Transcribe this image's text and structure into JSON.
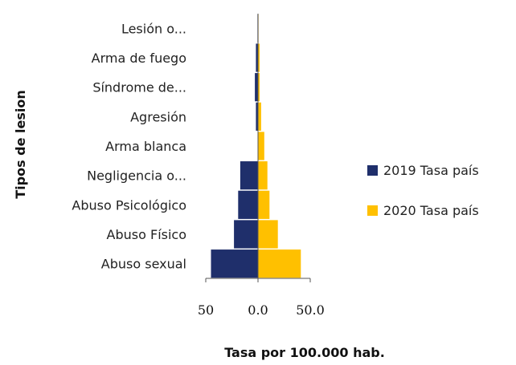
{
  "chart_data": {
    "type": "bar",
    "orientation": "horizontal",
    "layout": "population-pyramid",
    "categories": [
      "Lesión o...",
      "Arma de fuego",
      "Síndrome de...",
      "Agresión",
      "Arma blanca",
      "Negligencia o...",
      "Abuso Psicológico",
      "Abuso Físico",
      "Abuso sexual"
    ],
    "series": [
      {
        "name": "2019 Tasa país",
        "color": "#1f2f6b",
        "side": "left",
        "values": [
          0.5,
          2,
          3,
          2,
          0,
          17,
          19,
          23,
          45
        ]
      },
      {
        "name": "2020 Tasa país",
        "color": "#ffc000",
        "side": "right",
        "values": [
          0.5,
          1.5,
          1.5,
          3,
          6,
          9,
          11,
          19,
          41
        ]
      }
    ],
    "xlabel": "Tasa por 100.000 hab.",
    "ylabel": "Tipos de lesion",
    "xlim": [
      -50,
      50
    ],
    "xticks": [
      {
        "value": -50,
        "label": "50"
      },
      {
        "value": 0,
        "label": "0.0"
      },
      {
        "value": 50,
        "label": "50.0"
      }
    ],
    "grid": false,
    "legend": "right"
  }
}
